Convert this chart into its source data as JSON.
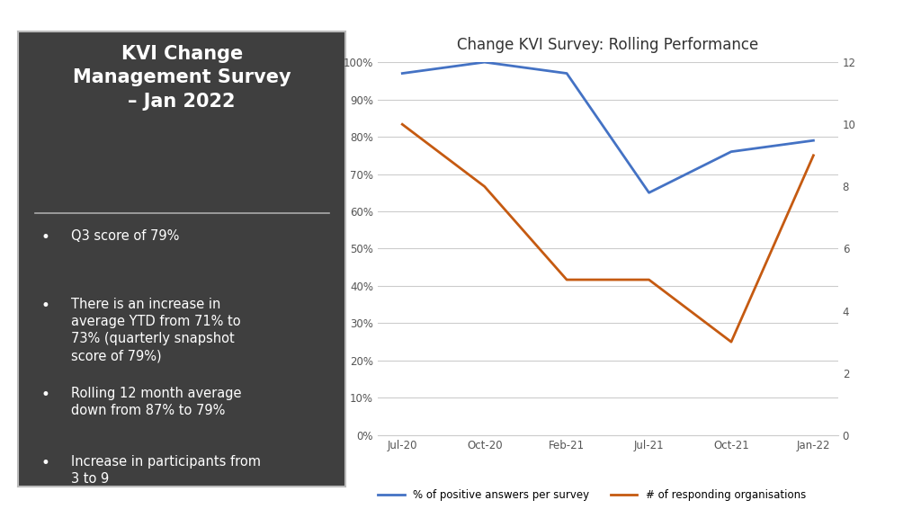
{
  "title": "Change KVI Survey: Rolling Performance",
  "left_panel_title": "KVI Change\nManagement Survey\n– Jan 2022",
  "bullet_points": [
    "Q3 score of 79%",
    "There is an increase in\naverage YTD from 71% to\n73% (quarterly snapshot\nscore of 79%)",
    "Rolling 12 month average\ndown from 87% to 79%",
    "Increase in participants from\n3 to 9"
  ],
  "x_labels": [
    "Jul-20",
    "Oct-20",
    "Feb-21",
    "Jul-21",
    "Oct-21",
    "Jan-22"
  ],
  "blue_line": [
    97,
    100,
    97,
    65,
    76,
    79
  ],
  "orange_line": [
    10,
    8,
    5,
    5,
    3,
    9
  ],
  "blue_color": "#4472C4",
  "orange_color": "#C55A11",
  "left_bg_color": "#3F3F3F",
  "yleft_min": 0,
  "yleft_max": 100,
  "yright_min": 0,
  "yright_max": 12,
  "yleft_ticks": [
    0,
    10,
    20,
    30,
    40,
    50,
    60,
    70,
    80,
    90,
    100
  ],
  "yright_ticks": [
    0,
    2,
    4,
    6,
    8,
    10,
    12
  ],
  "legend_blue": "% of positive answers per survey",
  "legend_orange": "# of responding organisations",
  "divider_color": "#AAAAAA",
  "border_color": "#BBBBBB"
}
